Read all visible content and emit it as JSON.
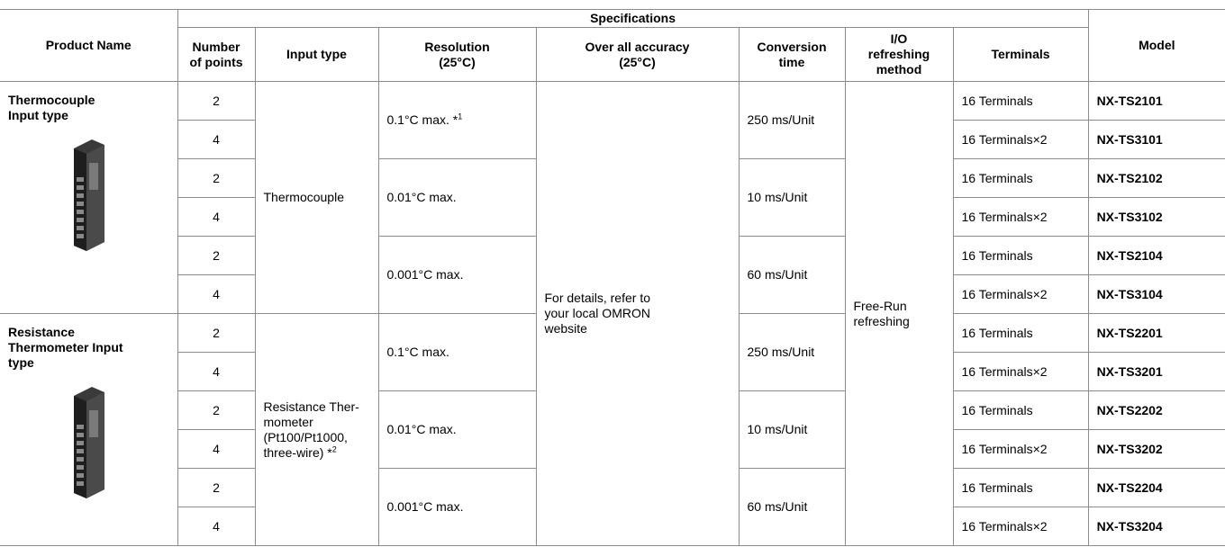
{
  "table": {
    "header": {
      "product_name": "Product Name",
      "specifications": "Specifications",
      "model": "Model",
      "columns": [
        "Number\nof points",
        "Input type",
        "Resolution\n(25°C)",
        "Over all accuracy\n(25°C)",
        "Conversion\ntime",
        "I/O\nrefreshing\nmethod",
        "Terminals"
      ]
    },
    "products": [
      "Thermocouple\nInput type",
      "Resistance\nThermometer Input\ntype"
    ],
    "input_types": [
      {
        "text": "Thermocouple"
      },
      {
        "text": "Resistance Ther-\nmometer\n(Pt100/Pt1000,\nthree-wire) *",
        "sup": "2"
      }
    ],
    "resolutions": [
      {
        "text": "0.1°C max. *",
        "sup": "1"
      },
      {
        "text": "0.01°C max."
      },
      {
        "text": "0.001°C max."
      },
      {
        "text": "0.1°C max."
      },
      {
        "text": "0.01°C max."
      },
      {
        "text": "0.001°C max."
      }
    ],
    "accuracy": "For details, refer to\nyour local OMRON\nwebsite",
    "conversion_times": [
      "250 ms/Unit",
      "10 ms/Unit",
      "60 ms/Unit",
      "250 ms/Unit",
      "10 ms/Unit",
      "60 ms/Unit"
    ],
    "refreshing": "Free-Run\nrefreshing",
    "rows": [
      {
        "points": 2,
        "terminals": "16 Terminals",
        "model": "NX-TS2101"
      },
      {
        "points": 4,
        "terminals": "16 Terminals×2",
        "model": "NX-TS3101"
      },
      {
        "points": 2,
        "terminals": "16 Terminals",
        "model": "NX-TS2102"
      },
      {
        "points": 4,
        "terminals": "16 Terminals×2",
        "model": "NX-TS3102"
      },
      {
        "points": 2,
        "terminals": "16 Terminals",
        "model": "NX-TS2104"
      },
      {
        "points": 4,
        "terminals": "16 Terminals×2",
        "model": "NX-TS3104"
      },
      {
        "points": 2,
        "terminals": "16 Terminals",
        "model": "NX-TS2201"
      },
      {
        "points": 4,
        "terminals": "16 Terminals×2",
        "model": "NX-TS3201"
      },
      {
        "points": 2,
        "terminals": "16 Terminals",
        "model": "NX-TS2202"
      },
      {
        "points": 4,
        "terminals": "16 Terminals×2",
        "model": "NX-TS3202"
      },
      {
        "points": 2,
        "terminals": "16 Terminals",
        "model": "NX-TS2204"
      },
      {
        "points": 4,
        "terminals": "16 Terminals×2",
        "model": "NX-TS3204"
      }
    ]
  }
}
